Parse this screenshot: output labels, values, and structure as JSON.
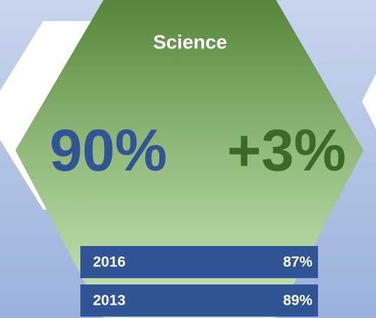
{
  "title": "Science",
  "value": "90%",
  "change": "+3%",
  "rows": [
    {
      "year": "2016",
      "value": "87%"
    },
    {
      "year": "2013",
      "value": "89%"
    }
  ]
}
